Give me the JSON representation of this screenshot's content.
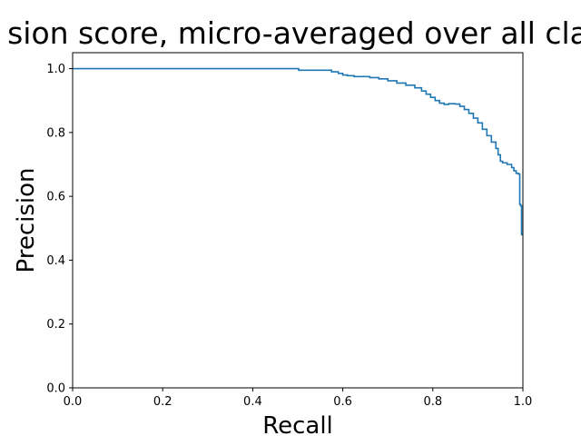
{
  "chart_data": {
    "type": "line",
    "title": "sion score, micro-averaged over all cla",
    "xlabel": "Recall",
    "ylabel": "Precision",
    "xlim": [
      0.0,
      1.0
    ],
    "ylim": [
      0.0,
      1.05
    ],
    "x_ticks": [
      "0.0",
      "0.2",
      "0.4",
      "0.6",
      "0.8",
      "1.0"
    ],
    "y_ticks": [
      "0.0",
      "0.2",
      "0.4",
      "0.6",
      "0.8",
      "1.0"
    ],
    "grid": false,
    "legend": "none",
    "series_color": "#1f77b4",
    "series": [
      {
        "step": "post",
        "x": [
          0.0,
          0.5,
          0.502,
          0.575,
          0.59,
          0.6,
          0.61,
          0.625,
          0.66,
          0.68,
          0.7,
          0.72,
          0.74,
          0.76,
          0.775,
          0.785,
          0.795,
          0.805,
          0.815,
          0.825,
          0.835,
          0.85,
          0.86,
          0.87,
          0.88,
          0.89,
          0.9,
          0.91,
          0.92,
          0.93,
          0.94,
          0.945,
          0.95,
          0.955,
          0.965,
          0.975,
          0.98,
          0.985,
          0.99,
          0.993,
          0.995,
          0.997,
          1.0
        ],
        "y": [
          1.0,
          1.0,
          0.995,
          0.99,
          0.985,
          0.98,
          0.978,
          0.975,
          0.972,
          0.968,
          0.962,
          0.955,
          0.948,
          0.94,
          0.93,
          0.92,
          0.91,
          0.9,
          0.892,
          0.888,
          0.89,
          0.889,
          0.882,
          0.872,
          0.86,
          0.845,
          0.83,
          0.81,
          0.79,
          0.77,
          0.75,
          0.73,
          0.71,
          0.705,
          0.7,
          0.69,
          0.68,
          0.672,
          0.67,
          0.575,
          0.57,
          0.48,
          0.48
        ]
      }
    ]
  }
}
